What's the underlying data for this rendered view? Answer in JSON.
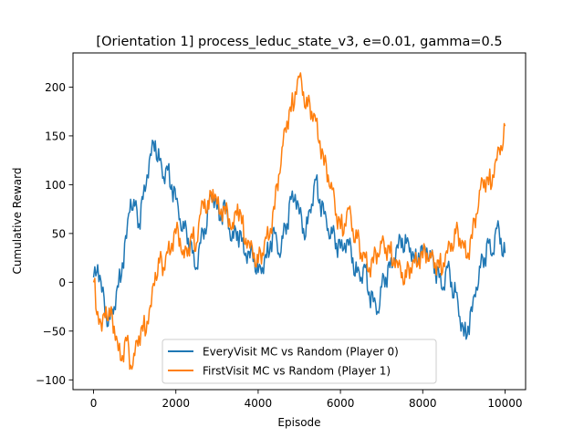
{
  "chart_data": {
    "type": "line",
    "title": "[Orientation 1] process_leduc_state_v3, e=0.01, gamma=0.5",
    "xlabel": "Episode",
    "ylabel": "Cumulative Reward",
    "xlim": [
      -500,
      10500
    ],
    "ylim": [
      -110,
      235
    ],
    "xticks": [
      0,
      2000,
      4000,
      6000,
      8000,
      10000
    ],
    "yticks": [
      -100,
      -50,
      0,
      50,
      100,
      150,
      200
    ],
    "grid": false,
    "legend_position": "lower center",
    "series": [
      {
        "name": "EveryVisit MC vs Random (Player 0)",
        "color": "#1f77b4",
        "x": [
          0,
          100,
          200,
          300,
          400,
          500,
          600,
          700,
          800,
          900,
          1000,
          1100,
          1200,
          1300,
          1400,
          1500,
          1600,
          1700,
          1800,
          1900,
          2000,
          2100,
          2200,
          2300,
          2400,
          2500,
          2600,
          2700,
          2800,
          2900,
          3000,
          3100,
          3200,
          3300,
          3400,
          3500,
          3600,
          3700,
          3800,
          3900,
          4000,
          4100,
          4200,
          4300,
          4400,
          4500,
          4600,
          4700,
          4800,
          4900,
          5000,
          5100,
          5200,
          5300,
          5400,
          5500,
          5600,
          5700,
          5800,
          5900,
          6000,
          6100,
          6200,
          6300,
          6400,
          6500,
          6600,
          6700,
          6800,
          6900,
          7000,
          7100,
          7200,
          7300,
          7400,
          7500,
          7600,
          7700,
          7800,
          7900,
          8000,
          8100,
          8200,
          8300,
          8400,
          8500,
          8600,
          8700,
          8800,
          8900,
          9000,
          9100,
          9200,
          9300,
          9400,
          9500,
          9600,
          9700,
          9800,
          9900,
          10000
        ],
        "values": [
          5,
          18,
          -10,
          -30,
          -38,
          -25,
          -5,
          20,
          45,
          85,
          78,
          60,
          85,
          110,
          130,
          145,
          125,
          108,
          115,
          100,
          85,
          65,
          55,
          45,
          30,
          15,
          40,
          55,
          80,
          90,
          75,
          70,
          78,
          55,
          45,
          52,
          42,
          30,
          25,
          30,
          10,
          15,
          25,
          42,
          50,
          30,
          45,
          60,
          85,
          90,
          70,
          55,
          60,
          80,
          105,
          85,
          70,
          55,
          50,
          40,
          35,
          40,
          38,
          25,
          10,
          5,
          15,
          -10,
          -20,
          -30,
          -5,
          5,
          15,
          25,
          35,
          45,
          40,
          35,
          20,
          30,
          30,
          35,
          25,
          15,
          5,
          -5,
          15,
          0,
          -10,
          -35,
          -55,
          -45,
          -30,
          -5,
          15,
          25,
          40,
          30,
          55,
          45,
          30
        ]
      },
      {
        "name": "FirstVisit MC vs Random (Player 1)",
        "color": "#ff7f0e",
        "x": [
          0,
          100,
          200,
          300,
          400,
          500,
          600,
          700,
          800,
          900,
          1000,
          1100,
          1200,
          1300,
          1400,
          1500,
          1600,
          1700,
          1800,
          1900,
          2000,
          2100,
          2200,
          2300,
          2400,
          2500,
          2600,
          2700,
          2800,
          2900,
          3000,
          3100,
          3200,
          3300,
          3400,
          3500,
          3600,
          3700,
          3800,
          3900,
          4000,
          4100,
          4200,
          4300,
          4400,
          4500,
          4600,
          4700,
          4800,
          4900,
          5000,
          5100,
          5200,
          5300,
          5400,
          5500,
          5600,
          5700,
          5800,
          5900,
          6000,
          6100,
          6200,
          6300,
          6400,
          6500,
          6600,
          6700,
          6800,
          6900,
          7000,
          7100,
          7200,
          7300,
          7400,
          7500,
          7600,
          7700,
          7800,
          7900,
          8000,
          8100,
          8200,
          8300,
          8400,
          8500,
          8600,
          8700,
          8800,
          8900,
          9000,
          9100,
          9200,
          9300,
          9400,
          9500,
          9600,
          9700,
          9800,
          9900,
          10000
        ],
        "values": [
          0,
          -30,
          -50,
          -25,
          -35,
          -45,
          -70,
          -75,
          -60,
          -85,
          -75,
          -55,
          -50,
          -40,
          -25,
          10,
          20,
          15,
          30,
          40,
          50,
          45,
          25,
          35,
          45,
          40,
          70,
          85,
          75,
          95,
          80,
          75,
          70,
          65,
          55,
          80,
          60,
          45,
          35,
          30,
          20,
          30,
          45,
          55,
          75,
          110,
          140,
          165,
          175,
          195,
          210,
          195,
          180,
          175,
          165,
          145,
          120,
          110,
          95,
          70,
          55,
          60,
          75,
          55,
          45,
          30,
          25,
          15,
          20,
          30,
          40,
          35,
          30,
          25,
          15,
          10,
          5,
          15,
          20,
          25,
          25,
          30,
          25,
          20,
          15,
          20,
          30,
          40,
          50,
          45,
          35,
          30,
          45,
          70,
          95,
          105,
          100,
          110,
          125,
          140,
          160
        ]
      }
    ]
  }
}
